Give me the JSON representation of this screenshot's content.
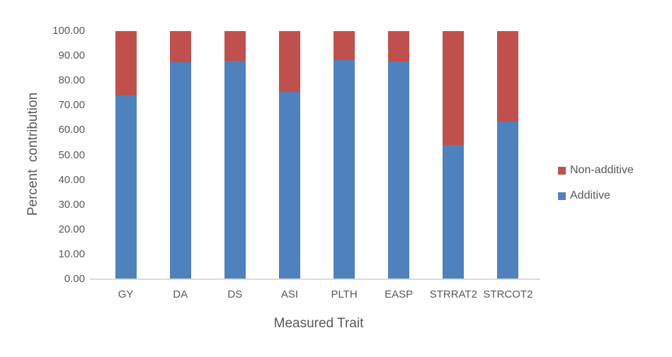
{
  "chart_data": {
    "type": "bar",
    "stacked": true,
    "title": "",
    "xlabel": "Measured Trait",
    "ylabel": "Percent  contribution",
    "categories": [
      "GY",
      "DA",
      "DS",
      "ASI",
      "PLTH",
      "EASP",
      "STRRAT2",
      "STRCOT2"
    ],
    "series": [
      {
        "name": "Additive",
        "color": "#4F81BD",
        "values": [
          74.0,
          87.6,
          88.1,
          75.5,
          88.3,
          87.7,
          54.2,
          63.4
        ]
      },
      {
        "name": "Non-additive",
        "color": "#C0504D",
        "values": [
          26.0,
          12.4,
          11.9,
          24.5,
          11.7,
          12.3,
          45.8,
          36.6
        ]
      }
    ],
    "ylim": [
      0,
      100
    ],
    "ytick_step": 10,
    "yticks": [
      "100.00",
      "90.00",
      "80.00",
      "70.00",
      "60.00",
      "50.00",
      "40.00",
      "30.00",
      "20.00",
      "10.00",
      "0.00"
    ],
    "grid": false,
    "legend_position": "right",
    "legend_order": [
      "Non-additive",
      "Additive"
    ]
  },
  "colors": {
    "background": "#FFFFFF",
    "text": "#595959",
    "axis_line": "#D9D9D9",
    "additive": "#4F81BD",
    "non_additive": "#C0504D"
  }
}
